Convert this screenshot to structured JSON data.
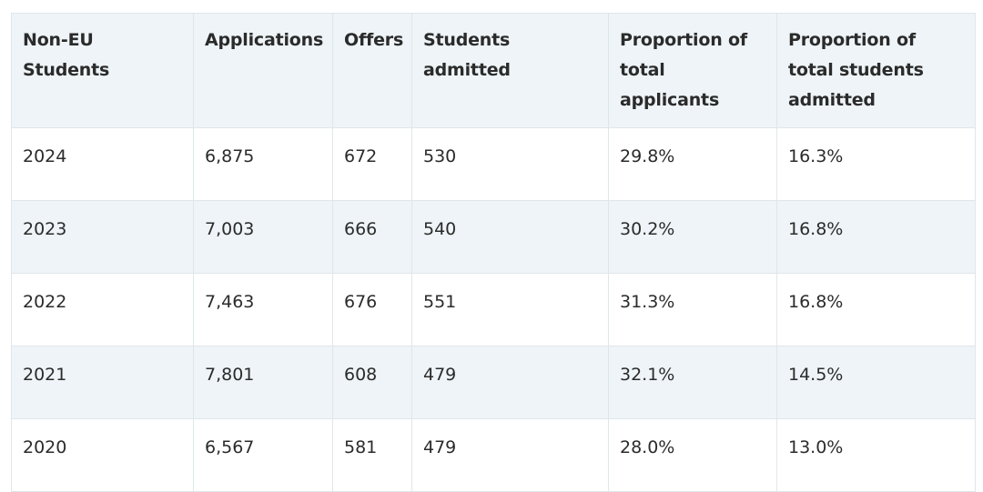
{
  "table": {
    "headers": [
      "Non-EU Students",
      "Applications",
      "Offers",
      "Students admitted",
      "Proportion of total applicants",
      "Proportion of total students admitted"
    ],
    "rows": [
      [
        "2024",
        "6,875",
        "672",
        "530",
        "29.8%",
        "16.3%"
      ],
      [
        "2023",
        "7,003",
        "666",
        "540",
        "30.2%",
        "16.8%"
      ],
      [
        "2022",
        "7,463",
        "676",
        "551",
        "31.3%",
        "16.8%"
      ],
      [
        "2021",
        "7,801",
        "608",
        "479",
        "32.1%",
        "14.5%"
      ],
      [
        "2020",
        "6,567",
        "581",
        "479",
        "28.0%",
        "13.0%"
      ]
    ]
  }
}
